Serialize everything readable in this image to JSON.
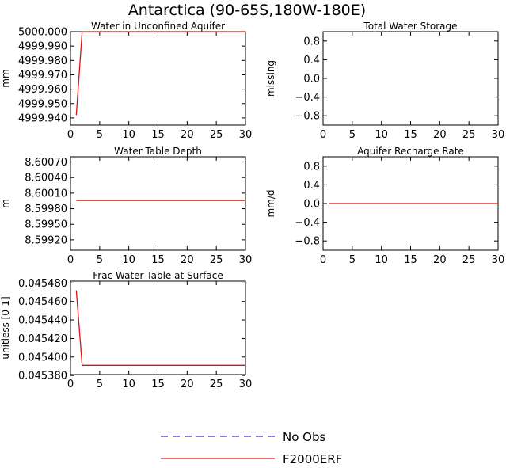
{
  "title": "Antarctica (90-65S,180W-180E)",
  "colors": {
    "obs": "#3333cc",
    "model": "#dd1111",
    "frame": "#000000"
  },
  "legend": [
    {
      "label": "No Obs",
      "style": "dashed",
      "color": "#3333cc"
    },
    {
      "label": "F2000ERF",
      "style": "solid",
      "color": "#dd1111"
    }
  ],
  "chart_data": [
    {
      "type": "line",
      "title": "Water in Unconfined Aquifer",
      "ylabel": "mm",
      "xlim": [
        0,
        30
      ],
      "ylim": [
        4999.935,
        5000.0
      ],
      "xticks": [
        "0",
        "5",
        "10",
        "15",
        "20",
        "25",
        "30"
      ],
      "yticks": [
        {
          "v": 5000.0,
          "label": "5000.000"
        },
        {
          "v": 4999.99,
          "label": "4999.990"
        },
        {
          "v": 4999.98,
          "label": "4999.980"
        },
        {
          "v": 4999.97,
          "label": "4999.970"
        },
        {
          "v": 4999.96,
          "label": "4999.960"
        },
        {
          "v": 4999.95,
          "label": "4999.950"
        },
        {
          "v": 4999.94,
          "label": "4999.940"
        }
      ],
      "series": [
        {
          "name": "F2000ERF",
          "x": [
            1,
            2,
            3,
            4,
            5,
            6,
            7,
            8,
            9,
            10,
            11,
            12,
            13,
            14,
            15,
            16,
            17,
            18,
            19,
            20,
            21,
            22,
            23,
            24,
            25,
            26,
            27,
            28,
            29,
            30
          ],
          "y": [
            4999.942,
            5000.0,
            5000.0,
            5000.0,
            5000.0,
            5000.0,
            5000.0,
            5000.0,
            5000.0,
            5000.0,
            5000.0,
            5000.0,
            5000.0,
            5000.0,
            5000.0,
            5000.0,
            5000.0,
            5000.0,
            5000.0,
            5000.0,
            5000.0,
            5000.0,
            5000.0,
            5000.0,
            5000.0,
            5000.0,
            5000.0,
            5000.0,
            5000.0,
            5000.0
          ]
        }
      ]
    },
    {
      "type": "line",
      "title": "Total Water Storage",
      "ylabel": "missing",
      "xlim": [
        0,
        30
      ],
      "ylim": [
        -1,
        1
      ],
      "xticks": [
        "0",
        "5",
        "10",
        "15",
        "20",
        "25",
        "30"
      ],
      "yticks": [
        {
          "v": 0.8,
          "label": "0.8"
        },
        {
          "v": 0.4,
          "label": "0.4"
        },
        {
          "v": 0.0,
          "label": "0.0"
        },
        {
          "v": -0.4,
          "label": "−0.4"
        },
        {
          "v": -0.8,
          "label": "−0.8"
        }
      ],
      "series": []
    },
    {
      "type": "line",
      "title": "Water Table Depth",
      "ylabel": "m",
      "xlim": [
        0,
        30
      ],
      "ylim": [
        8.599,
        8.6008
      ],
      "xticks": [
        "0",
        "5",
        "10",
        "15",
        "20",
        "25",
        "30"
      ],
      "yticks": [
        {
          "v": 8.6007,
          "label": "8.60070"
        },
        {
          "v": 8.6004,
          "label": "8.60040"
        },
        {
          "v": 8.6001,
          "label": "8.60010"
        },
        {
          "v": 8.5998,
          "label": "8.59980"
        },
        {
          "v": 8.5995,
          "label": "8.59950"
        },
        {
          "v": 8.5992,
          "label": "8.59920"
        }
      ],
      "series": [
        {
          "name": "F2000ERF",
          "x": [
            1,
            30
          ],
          "y": [
            8.59996,
            8.59996
          ]
        }
      ]
    },
    {
      "type": "line",
      "title": "Aquifer Recharge Rate",
      "ylabel": "mm/d",
      "xlim": [
        0,
        30
      ],
      "ylim": [
        -1,
        1
      ],
      "xticks": [
        "0",
        "5",
        "10",
        "15",
        "20",
        "25",
        "30"
      ],
      "yticks": [
        {
          "v": 0.8,
          "label": "0.8"
        },
        {
          "v": 0.4,
          "label": "0.4"
        },
        {
          "v": 0.0,
          "label": "0.0"
        },
        {
          "v": -0.4,
          "label": "−0.4"
        },
        {
          "v": -0.8,
          "label": "−0.8"
        }
      ],
      "series": [
        {
          "name": "F2000ERF",
          "x": [
            1,
            30
          ],
          "y": [
            0.0,
            0.0
          ]
        }
      ]
    },
    {
      "type": "line",
      "title": "Frac Water Table at Surface",
      "ylabel": "unitless [0-1]",
      "xlim": [
        0,
        30
      ],
      "ylim": [
        0.045381,
        0.045482
      ],
      "xticks": [
        "0",
        "5",
        "10",
        "15",
        "20",
        "25",
        "30"
      ],
      "yticks": [
        {
          "v": 0.04548,
          "label": "0.045480"
        },
        {
          "v": 0.04546,
          "label": "0.045460"
        },
        {
          "v": 0.04544,
          "label": "0.045440"
        },
        {
          "v": 0.04542,
          "label": "0.045420"
        },
        {
          "v": 0.0454,
          "label": "0.045400"
        },
        {
          "v": 0.04538,
          "label": "0.045380"
        }
      ],
      "series": [
        {
          "name": "F2000ERF",
          "x": [
            1,
            2,
            3,
            4,
            5,
            6,
            7,
            8,
            9,
            10,
            11,
            12,
            13,
            14,
            15,
            16,
            17,
            18,
            19,
            20,
            21,
            22,
            23,
            24,
            25,
            26,
            27,
            28,
            29,
            30
          ],
          "y": [
            0.045472,
            0.045391,
            0.045391,
            0.045391,
            0.045391,
            0.045391,
            0.045391,
            0.045391,
            0.045391,
            0.045391,
            0.045391,
            0.045391,
            0.045391,
            0.045391,
            0.045391,
            0.045391,
            0.045391,
            0.045391,
            0.045391,
            0.045391,
            0.045391,
            0.045391,
            0.045391,
            0.045391,
            0.045391,
            0.045391,
            0.045391,
            0.045391,
            0.045391,
            0.045391
          ]
        }
      ]
    }
  ]
}
